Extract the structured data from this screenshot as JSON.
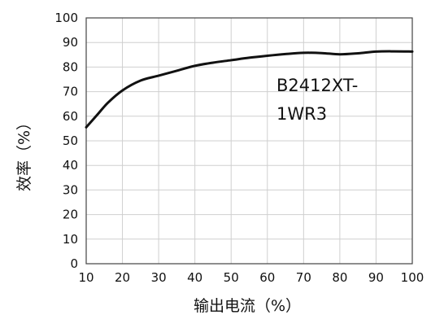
{
  "chart_data": {
    "type": "line",
    "xlabel": "输出电流（%）",
    "ylabel": "效率（%）",
    "xlim": [
      10,
      100
    ],
    "ylim": [
      0,
      100
    ],
    "x_ticks": [
      10,
      20,
      30,
      40,
      50,
      60,
      70,
      80,
      90,
      100
    ],
    "y_ticks": [
      0,
      10,
      20,
      30,
      40,
      50,
      60,
      70,
      80,
      90,
      100
    ],
    "grid": true,
    "annotation": [
      "B2412XT-",
      "1WR3"
    ],
    "line_color": "#111111",
    "grid_color": "#cfcfcf",
    "series": [
      {
        "x": [
          10,
          13,
          16,
          20,
          25,
          30,
          35,
          40,
          45,
          50,
          55,
          60,
          65,
          70,
          75,
          80,
          85,
          90,
          95,
          100
        ],
        "y": [
          55.5,
          60.5,
          65.5,
          70.5,
          74.5,
          76.5,
          78.5,
          80.5,
          81.8,
          82.8,
          83.8,
          84.6,
          85.3,
          85.8,
          85.7,
          85.2,
          85.6,
          86.3,
          86.4,
          86.3
        ]
      }
    ]
  }
}
